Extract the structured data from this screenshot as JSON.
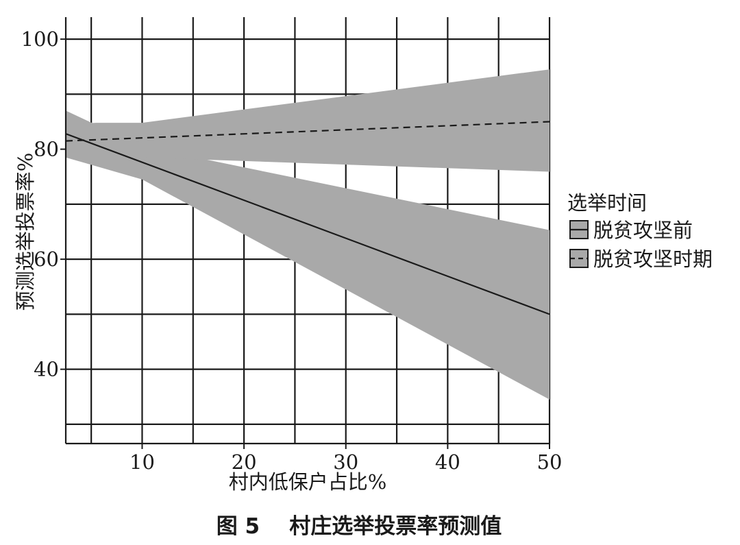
{
  "chart_data": {
    "type": "line",
    "title": "",
    "caption": "图 5    村庄选举投票率预测值",
    "xlabel": "村内低保户占比%",
    "ylabel": "预测选举投票率%",
    "xlim": [
      2.5,
      50
    ],
    "ylim": [
      26.5,
      104
    ],
    "x_ticks": [
      10,
      20,
      30,
      40,
      50
    ],
    "y_ticks": [
      40,
      60,
      80,
      100
    ],
    "x_grid": [
      5,
      10,
      15,
      20,
      25,
      30,
      35,
      40,
      45,
      50
    ],
    "y_grid": [
      30,
      40,
      50,
      60,
      70,
      80,
      90,
      100
    ],
    "grid": true,
    "legend": {
      "title": "选举时间",
      "position": "right"
    },
    "series": [
      {
        "name": "脱贫攻坚前",
        "line_style": "solid",
        "x": [
          2.5,
          50
        ],
        "y": [
          82.8,
          50.0
        ],
        "ci_x": [
          2.5,
          10,
          50
        ],
        "ci_upper": [
          87.0,
          80.5,
          65.3
        ],
        "ci_lower": [
          78.5,
          74.5,
          34.5
        ]
      },
      {
        "name": "脱贫攻坚时期",
        "line_style": "dashed",
        "x": [
          2.5,
          50
        ],
        "y": [
          81.5,
          85.0
        ],
        "ci_x": [
          2.5,
          5.5,
          10,
          50
        ],
        "ci_upper": [
          84.5,
          84.8,
          84.8,
          94.5
        ],
        "ci_lower": [
          78.5,
          78.5,
          78.5,
          75.9
        ]
      }
    ],
    "colors": {
      "band": "#a9a9a9",
      "line": "#1a1a1a",
      "grid": "#1a1a1a",
      "background": "#ffffff"
    }
  }
}
